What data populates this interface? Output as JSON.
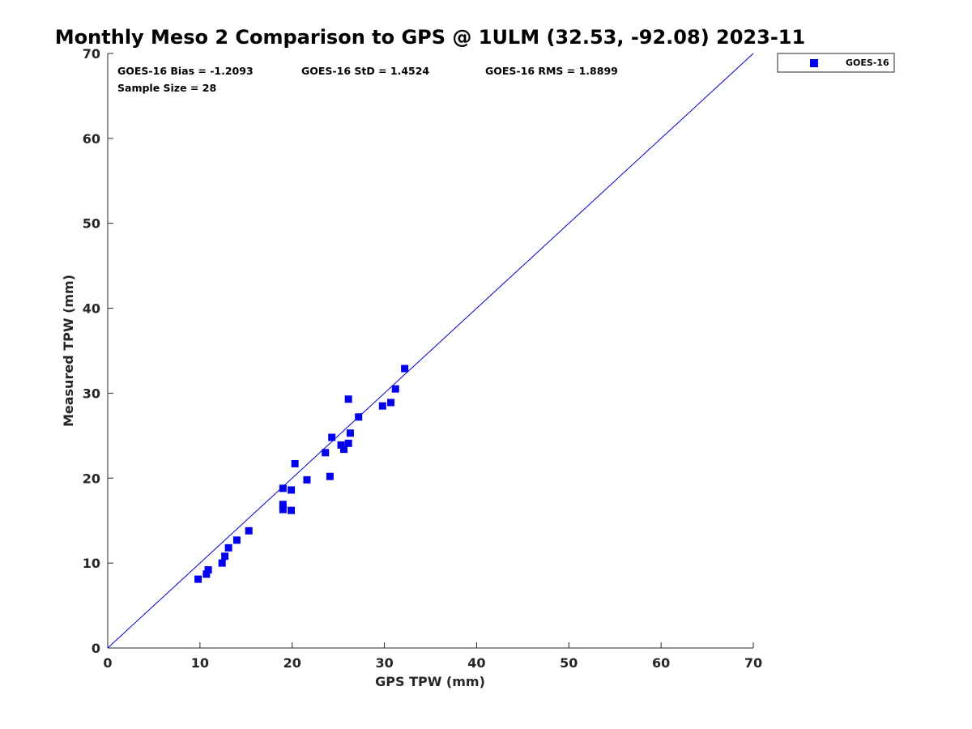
{
  "chart_data": {
    "type": "scatter",
    "title": "Monthly Meso 2 Comparison to GPS @ 1ULM (32.53, -92.08) 2023-11",
    "xlabel": "GPS TPW (mm)",
    "ylabel": "Measured TPW (mm)",
    "xlim": [
      0,
      70
    ],
    "ylim": [
      0,
      70
    ],
    "xticks": [
      "0",
      "10",
      "20",
      "30",
      "40",
      "50",
      "60",
      "70"
    ],
    "yticks": [
      "0",
      "10",
      "20",
      "30",
      "40",
      "50",
      "60",
      "70"
    ],
    "grid": false,
    "legend_position": "top-right, outside plot",
    "reference_line": {
      "from": [
        0,
        0
      ],
      "to": [
        70,
        70
      ],
      "color": "#0000cc"
    },
    "stats": {
      "bias": "GOES-16 Bias = -1.2093",
      "std": "GOES-16 StD = 1.4524",
      "rms": "GOES-16 RMS = 1.8899",
      "sample": "Sample Size = 28"
    },
    "series": [
      {
        "name": "GOES-16",
        "color": "#0000ee",
        "marker": "square",
        "points": [
          [
            9.8,
            8.1
          ],
          [
            10.7,
            8.7
          ],
          [
            10.9,
            9.2
          ],
          [
            12.4,
            10.0
          ],
          [
            12.7,
            10.8
          ],
          [
            13.1,
            11.8
          ],
          [
            14.0,
            12.7
          ],
          [
            15.3,
            13.8
          ],
          [
            19.0,
            18.8
          ],
          [
            19.0,
            16.9
          ],
          [
            19.0,
            16.3
          ],
          [
            19.9,
            16.2
          ],
          [
            19.9,
            18.6
          ],
          [
            20.3,
            21.7
          ],
          [
            21.6,
            19.8
          ],
          [
            23.6,
            23.0
          ],
          [
            24.1,
            20.2
          ],
          [
            24.3,
            24.8
          ],
          [
            25.3,
            23.9
          ],
          [
            25.6,
            23.4
          ],
          [
            26.1,
            24.1
          ],
          [
            26.3,
            25.3
          ],
          [
            26.1,
            29.3
          ],
          [
            27.2,
            27.2
          ],
          [
            29.8,
            28.5
          ],
          [
            30.7,
            28.9
          ],
          [
            31.2,
            30.5
          ],
          [
            32.2,
            32.9
          ]
        ]
      }
    ]
  }
}
